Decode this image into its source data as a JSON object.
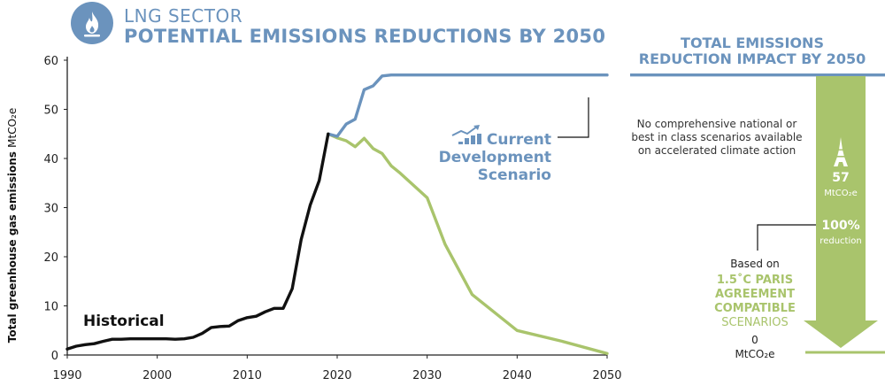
{
  "header": {
    "sector": "LNG SECTOR",
    "title": "POTENTIAL EMISSIONS REDUCTIONS BY 2050",
    "icon": "flame-icon"
  },
  "impact_panel": {
    "title_line1": "TOTAL EMISSIONS",
    "title_line2": "REDUCTION IMPACT BY 2050",
    "note_lines": [
      "No comprehensive national or",
      "best in class scenarios available",
      "on accelerated climate action"
    ],
    "icon": "eiffel-tower-icon",
    "value": "57",
    "value_unit": "MtCO₂e",
    "reduction_pct": "100%",
    "reduction_label": "reduction",
    "based_on": "Based on",
    "paris_lines": [
      "1.5˚C PARIS",
      "AGREEMENT",
      "COMPATIBLE"
    ],
    "scenarios_label": "SCENARIOS",
    "end_value": "0",
    "end_unit": "MtCO₂e"
  },
  "colors": {
    "blue": "#6b93bd",
    "green": "#a9c46c",
    "historical": "#111111",
    "text": "#333333"
  },
  "chart_data": {
    "type": "line",
    "ylabel": "Total greenhouse gas emissions",
    "ylabel_unit": "MtCO₂e",
    "xlim": [
      1990,
      2050
    ],
    "ylim": [
      0,
      60
    ],
    "x_ticks": [
      "1990",
      "2000",
      "2010",
      "2020",
      "2030",
      "2040",
      "2050"
    ],
    "y_ticks": [
      "0",
      "10",
      "20",
      "30",
      "40",
      "50",
      "60"
    ],
    "grid": false,
    "series": [
      {
        "name": "Historical",
        "color": "#111111",
        "points": [
          [
            1990,
            1.2
          ],
          [
            1991,
            1.8
          ],
          [
            1992,
            2.1
          ],
          [
            1993,
            2.3
          ],
          [
            1994,
            2.8
          ],
          [
            1995,
            3.2
          ],
          [
            1996,
            3.2
          ],
          [
            1997,
            3.3
          ],
          [
            1998,
            3.3
          ],
          [
            1999,
            3.3
          ],
          [
            2000,
            3.3
          ],
          [
            2001,
            3.3
          ],
          [
            2002,
            3.2
          ],
          [
            2003,
            3.3
          ],
          [
            2004,
            3.6
          ],
          [
            2005,
            4.4
          ],
          [
            2006,
            5.6
          ],
          [
            2007,
            5.8
          ],
          [
            2008,
            5.9
          ],
          [
            2009,
            7.0
          ],
          [
            2010,
            7.6
          ],
          [
            2011,
            7.9
          ],
          [
            2012,
            8.8
          ],
          [
            2013,
            9.5
          ],
          [
            2014,
            9.5
          ],
          [
            2015,
            13.5
          ],
          [
            2016,
            23.5
          ],
          [
            2017,
            30.5
          ],
          [
            2018,
            35.5
          ],
          [
            2019,
            45.0
          ]
        ]
      },
      {
        "name": "Current Development Scenario",
        "label_lines": [
          "Current",
          "Development",
          "Scenario"
        ],
        "color": "#6b93bd",
        "points": [
          [
            2019,
            45.0
          ],
          [
            2020,
            44.5
          ],
          [
            2021,
            47.0
          ],
          [
            2022,
            48.0
          ],
          [
            2023,
            54.0
          ],
          [
            2024,
            54.8
          ],
          [
            2025,
            56.8
          ],
          [
            2026,
            57.0
          ],
          [
            2050,
            57.0
          ]
        ]
      },
      {
        "name": "1.5˚C Paris Agreement compatible scenarios",
        "color": "#a9c46c",
        "points": [
          [
            2019,
            45.0
          ],
          [
            2020,
            44.2
          ],
          [
            2021,
            43.6
          ],
          [
            2022,
            42.4
          ],
          [
            2023,
            44.1
          ],
          [
            2024,
            42.0
          ],
          [
            2025,
            41.0
          ],
          [
            2026,
            38.5
          ],
          [
            2027,
            37.0
          ],
          [
            2030,
            32.0
          ],
          [
            2032,
            22.5
          ],
          [
            2035,
            12.3
          ],
          [
            2040,
            5.0
          ],
          [
            2045,
            2.8
          ],
          [
            2050,
            0.3
          ]
        ]
      }
    ],
    "annotations": [
      "Historical",
      "Current Development Scenario"
    ]
  }
}
